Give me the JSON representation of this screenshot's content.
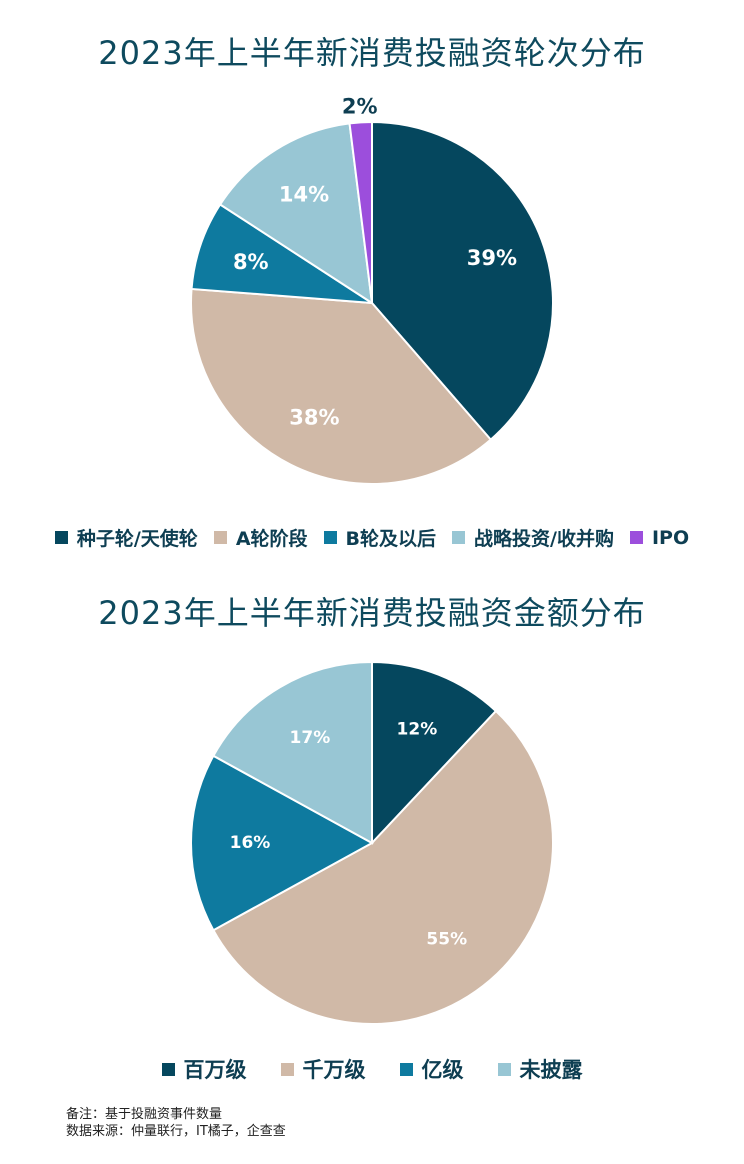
{
  "chart_data": [
    {
      "type": "pie",
      "title": "2023年上半年新消费投融资轮次分布",
      "labels": [
        "种子轮/天使轮",
        "A轮阶段",
        "B轮及以后",
        "战略投资/收并购",
        "IPO"
      ],
      "values": [
        39,
        38,
        8,
        14,
        2
      ],
      "value_labels": [
        "39%",
        "38%",
        "8%",
        "14%",
        "2%"
      ],
      "colors": [
        "#05475e",
        "#d0b9a7",
        "#0e7a9f",
        "#98c6d4",
        "#9c4edc"
      ],
      "label_colors": [
        "#ffffff",
        "#ffffff",
        "#ffffff",
        "#ffffff",
        "#0e3e52"
      ],
      "legend_position": "bottom"
    },
    {
      "type": "pie",
      "title": "2023年上半年新消费投融资金额分布",
      "labels": [
        "百万级",
        "千万级",
        "亿级",
        "未披露"
      ],
      "values": [
        12,
        55,
        16,
        17
      ],
      "value_labels": [
        "12%",
        "55%",
        "16%",
        "17%"
      ],
      "colors": [
        "#05475e",
        "#d0b9a7",
        "#0e7a9f",
        "#98c6d4"
      ],
      "label_colors": [
        "#ffffff",
        "#ffffff",
        "#ffffff",
        "#ffffff"
      ],
      "legend_position": "bottom"
    }
  ],
  "footer": {
    "note": "备注：基于投融资事件数量",
    "source": "数据来源：仲量联行，IT橘子，企查查"
  }
}
